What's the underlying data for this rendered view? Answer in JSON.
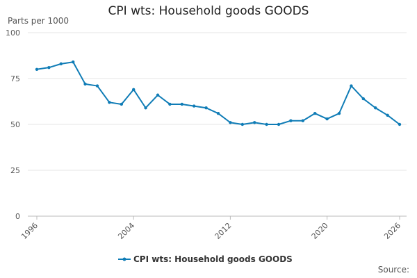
{
  "chart_data": {
    "type": "line",
    "title": "CPI wts: Household goods GOODS",
    "ylabel": "Parts per 1000",
    "xlabel": "",
    "ylim": [
      0,
      100
    ],
    "yticks": [
      0,
      25,
      50,
      75,
      100
    ],
    "xlim": [
      1996,
      2026
    ],
    "xticks": [
      1996,
      2004,
      2012,
      2020,
      2026
    ],
    "grid": true,
    "legend_position": "bottom",
    "source_label": "Source:",
    "series": [
      {
        "name": "CPI wts: Household goods GOODS",
        "color": "#0f7cb6",
        "x": [
          1996,
          1997,
          1998,
          1999,
          2000,
          2001,
          2002,
          2003,
          2004,
          2005,
          2006,
          2007,
          2008,
          2009,
          2010,
          2011,
          2012,
          2013,
          2014,
          2015,
          2016,
          2017,
          2018,
          2019,
          2020,
          2021,
          2022,
          2023,
          2024,
          2025,
          2026
        ],
        "values": [
          80,
          81,
          83,
          84,
          72,
          71,
          62,
          61,
          69,
          59,
          66,
          61,
          61,
          60,
          59,
          56,
          51,
          50,
          51,
          50,
          50,
          52,
          52,
          56,
          53,
          56,
          71,
          64,
          59,
          55,
          50
        ]
      }
    ]
  }
}
